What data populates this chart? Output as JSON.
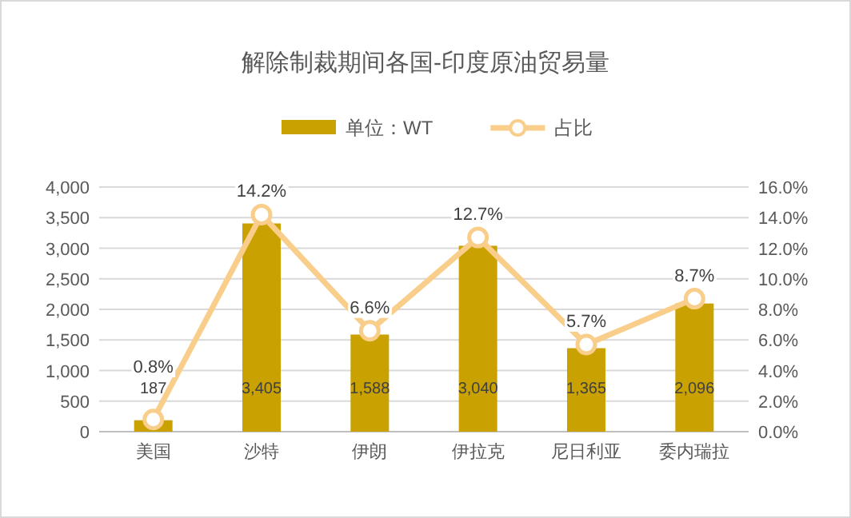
{
  "chart_data": {
    "type": "bar",
    "title": "解除制裁期间各国-印度原油贸易量",
    "categories": [
      "美国",
      "沙特",
      "伊朗",
      "伊拉克",
      "尼日利亚",
      "委内瑞拉"
    ],
    "series": [
      {
        "name": "单位：WT",
        "type": "bar",
        "color": "#c9a100",
        "values": [
          187,
          3405,
          1588,
          3040,
          1365,
          2096
        ],
        "value_labels": [
          "187",
          "3,405",
          "1,588",
          "3,040",
          "1,365",
          "2,096"
        ]
      },
      {
        "name": "占比",
        "type": "line",
        "axis": "y2",
        "color": "#f9cd8a",
        "marker": "circle",
        "values": [
          0.8,
          14.2,
          6.6,
          12.7,
          5.7,
          8.7
        ],
        "value_labels": [
          "0.8%",
          "14.2%",
          "6.6%",
          "12.7%",
          "5.7%",
          "8.7%"
        ]
      }
    ],
    "ylim": [
      0,
      4000
    ],
    "yticks": [
      0,
      500,
      {
        "value": 1000,
        "label": "1,000"
      },
      {
        "value": 1500,
        "label": "1,500"
      },
      {
        "value": 2000,
        "label": "2,000"
      },
      {
        "value": 2500,
        "label": "2,500"
      },
      {
        "value": 3000,
        "label": "3,000"
      },
      {
        "value": 3500,
        "label": "3,500"
      },
      {
        "value": 4000,
        "label": "4,000"
      }
    ],
    "y2lim": [
      0,
      16
    ],
    "y2ticks": [
      {
        "value": 0,
        "label": "0.0%"
      },
      {
        "value": 2,
        "label": "2.0%"
      },
      {
        "value": 4,
        "label": "4.0%"
      },
      {
        "value": 6,
        "label": "6.0%"
      },
      {
        "value": 8,
        "label": "8.0%"
      },
      {
        "value": 10,
        "label": "10.0%"
      },
      {
        "value": 12,
        "label": "12.0%"
      },
      {
        "value": 14,
        "label": "14.0%"
      },
      {
        "value": 16,
        "label": "16.0%"
      }
    ],
    "grid": "y",
    "legend": "top"
  }
}
